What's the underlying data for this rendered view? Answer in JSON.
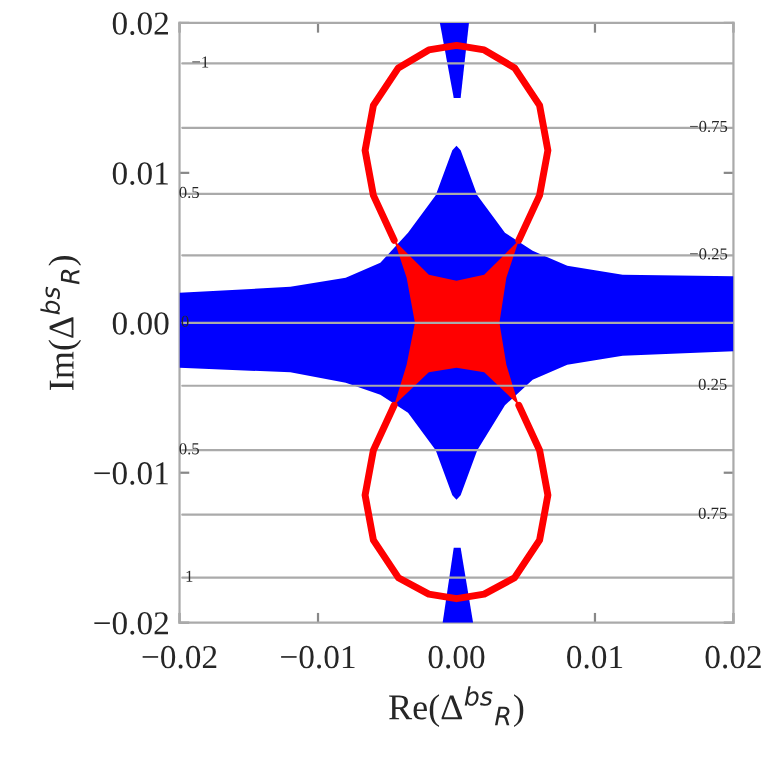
{
  "chart_data": {
    "type": "area",
    "xlabel": "Re(Δ$^{bs}$$_{R}$)",
    "ylabel": "Im(Δ$^{bs}$$_{R}$)",
    "xlim": [
      -0.02,
      0.02
    ],
    "ylim": [
      -0.02,
      0.02
    ],
    "xticks": [
      {
        "value": -0.02,
        "label": "−0.02"
      },
      {
        "value": -0.01,
        "label": "−0.01"
      },
      {
        "value": 0,
        "label": "0.00"
      },
      {
        "value": 0.01,
        "label": "0.01"
      },
      {
        "value": 0.02,
        "label": "0.02"
      }
    ],
    "yticks": [
      {
        "value": -0.02,
        "label": "−0.02"
      },
      {
        "value": -0.01,
        "label": "−0.01"
      },
      {
        "value": 0,
        "label": "0.00"
      },
      {
        "value": 0.01,
        "label": "0.01"
      },
      {
        "value": 0.02,
        "label": "0.02"
      }
    ],
    "annotations": [
      {
        "text": "−1",
        "x": -0.0185,
        "y": 0.0173
      },
      {
        "text": "−0.75",
        "x": 0.0182,
        "y": 0.013
      },
      {
        "text": "0.5",
        "x": -0.0193,
        "y": 0.0086
      },
      {
        "text": "−0.25",
        "x": 0.0182,
        "y": 0.0045
      },
      {
        "text": "0",
        "x": -0.0196,
        "y": 0
      },
      {
        "text": "0.25",
        "x": 0.0185,
        "y": -0.0042
      },
      {
        "text": "0.5",
        "x": -0.0193,
        "y": -0.0085
      },
      {
        "text": "0.75",
        "x": 0.0185,
        "y": -0.0128
      },
      {
        "text": "1",
        "x": -0.0193,
        "y": -0.017
      }
    ],
    "series": [
      {
        "color": "#0000ff",
        "x": [
          -0.02,
          -0.012,
          -0.008,
          -0.0055,
          -0.0035,
          -0.0015,
          -0.0003,
          0,
          0.0003,
          0.0015,
          0.0035,
          0.0055,
          0.008,
          0.012,
          0.02,
          0.02,
          0.012,
          0.008,
          0.0055,
          0.0035,
          0.0015,
          0.0003,
          0,
          -0.0003,
          -0.0015,
          -0.0035,
          -0.0055,
          -0.008,
          -0.012,
          -0.02
        ],
        "values": [
          0.002,
          0.0024,
          0.003,
          0.004,
          0.006,
          0.0085,
          0.0115,
          0.0118,
          0.0115,
          0.0085,
          0.006,
          0.0048,
          0.0038,
          0.0032,
          0.0031,
          -0.0019,
          -0.0022,
          -0.0028,
          -0.0038,
          -0.0055,
          -0.0085,
          -0.0115,
          -0.0118,
          -0.0115,
          -0.0085,
          -0.006,
          -0.0048,
          -0.004,
          -0.0033,
          -0.003
        ]
      },
      {
        "color": "#0000ff",
        "x": [
          -0.0012,
          0.0009,
          0.0003,
          -0.0002
        ],
        "values": [
          0.02,
          0.02,
          0.015,
          0.015
        ]
      },
      {
        "color": "#0000ff",
        "x": [
          -0.0002,
          0.0003,
          0.0012,
          -0.001
        ],
        "values": [
          -0.015,
          -0.015,
          -0.02,
          -0.02
        ]
      },
      {
        "color": "#ff0000",
        "x": [
          -0.0045,
          -0.002,
          0,
          0.002,
          0.0045,
          0.0036,
          0.0031,
          0.0036,
          0.0045,
          0.002,
          0,
          -0.002,
          -0.0045,
          -0.0036,
          -0.003,
          -0.0036
        ],
        "values": [
          0.0055,
          0.0032,
          0.0028,
          0.0032,
          0.0055,
          0.003,
          0.0,
          -0.0028,
          -0.0055,
          -0.0033,
          -0.003,
          -0.0033,
          -0.0055,
          -0.0028,
          0.0,
          0.003
        ]
      },
      {
        "type": "line",
        "color": "#ff0000",
        "x": [
          -0.0045,
          -0.006,
          -0.0066,
          -0.006,
          -0.0042,
          -0.002,
          0,
          0.002,
          0.0042,
          0.006,
          0.0066,
          0.006,
          0.0045
        ],
        "values": [
          0.0055,
          0.0085,
          0.0115,
          0.0145,
          0.017,
          0.0182,
          0.0185,
          0.0182,
          0.017,
          0.0145,
          0.0115,
          0.0085,
          0.0055
        ]
      },
      {
        "type": "line",
        "color": "#ff0000",
        "x": [
          -0.0045,
          -0.006,
          -0.0066,
          -0.006,
          -0.0042,
          -0.002,
          0,
          0.002,
          0.0042,
          0.006,
          0.0066,
          0.006,
          0.0045
        ],
        "values": [
          -0.0055,
          -0.0085,
          -0.0115,
          -0.0145,
          -0.017,
          -0.0181,
          -0.0184,
          -0.0181,
          -0.017,
          -0.0145,
          -0.0115,
          -0.0085,
          -0.0055
        ]
      },
      {
        "type": "line",
        "color": "#aaaaaa",
        "x": [
          -0.0198,
          0.02
        ],
        "values": [
          0.0173,
          0.0173
        ]
      },
      {
        "type": "line",
        "color": "#aaaaaa",
        "x": [
          -0.0198,
          0.02
        ],
        "values": [
          0.013,
          0.013
        ]
      },
      {
        "type": "line",
        "color": "#aaaaaa",
        "x": [
          -0.0198,
          0.02
        ],
        "values": [
          0.0086,
          0.0086
        ]
      },
      {
        "type": "line",
        "color": "#aaaaaa",
        "x": [
          -0.0198,
          0.02
        ],
        "values": [
          0.0045,
          0.0045
        ]
      },
      {
        "type": "line",
        "color": "#aaaaaa",
        "x": [
          -0.0198,
          0.02
        ],
        "values": [
          0,
          0
        ]
      },
      {
        "type": "line",
        "color": "#aaaaaa",
        "x": [
          -0.0198,
          0.02
        ],
        "values": [
          -0.0042,
          -0.0042
        ]
      },
      {
        "type": "line",
        "color": "#aaaaaa",
        "x": [
          -0.0198,
          0.02
        ],
        "values": [
          -0.0085,
          -0.0085
        ]
      },
      {
        "type": "line",
        "color": "#aaaaaa",
        "x": [
          -0.0198,
          0.02
        ],
        "values": [
          -0.0128,
          -0.0128
        ]
      },
      {
        "type": "line",
        "color": "#aaaaaa",
        "x": [
          -0.0198,
          0.02
        ],
        "values": [
          -0.017,
          -0.017
        ]
      }
    ]
  }
}
